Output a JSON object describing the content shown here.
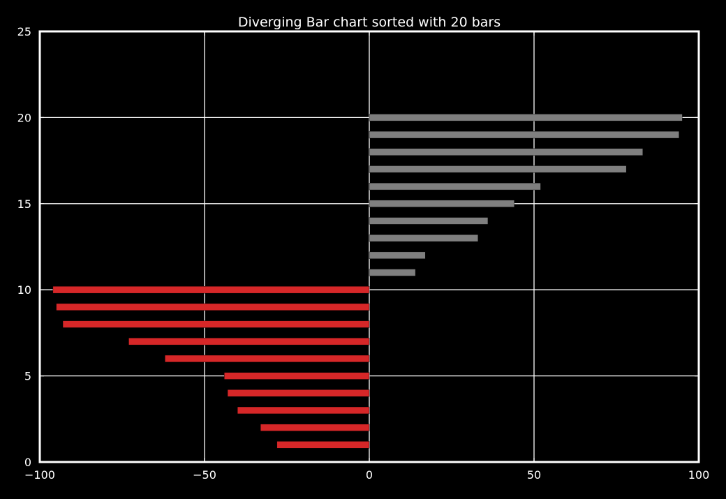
{
  "chart_data": {
    "type": "bar",
    "orientation": "horizontal",
    "title": "Diverging Bar chart sorted with 20 bars",
    "xlabel": "",
    "ylabel": "",
    "xlim": [
      -100,
      100
    ],
    "ylim": [
      0,
      25
    ],
    "xticks": [
      -100,
      -50,
      0,
      50,
      100
    ],
    "xtick_labels": [
      "−100",
      "−50",
      "0",
      "50",
      "100"
    ],
    "yticks": [
      0,
      5,
      10,
      15,
      20,
      25
    ],
    "ytick_labels": [
      "0",
      "5",
      "10",
      "15",
      "20",
      "25"
    ],
    "grid": true,
    "legend": "none",
    "y": [
      1,
      2,
      3,
      4,
      5,
      6,
      7,
      8,
      9,
      10,
      11,
      12,
      13,
      14,
      15,
      16,
      17,
      18,
      19,
      20
    ],
    "values": [
      -28,
      -33,
      -40,
      -43,
      -44,
      -62,
      -73,
      -93,
      -95,
      -96,
      14,
      17,
      33,
      36,
      44,
      52,
      78,
      83,
      94,
      95
    ],
    "colors": {
      "negative": "#d62728",
      "positive": "#7f7f7f",
      "background": "#000000",
      "axes": "#ffffff",
      "grid": "#ffffff"
    }
  }
}
